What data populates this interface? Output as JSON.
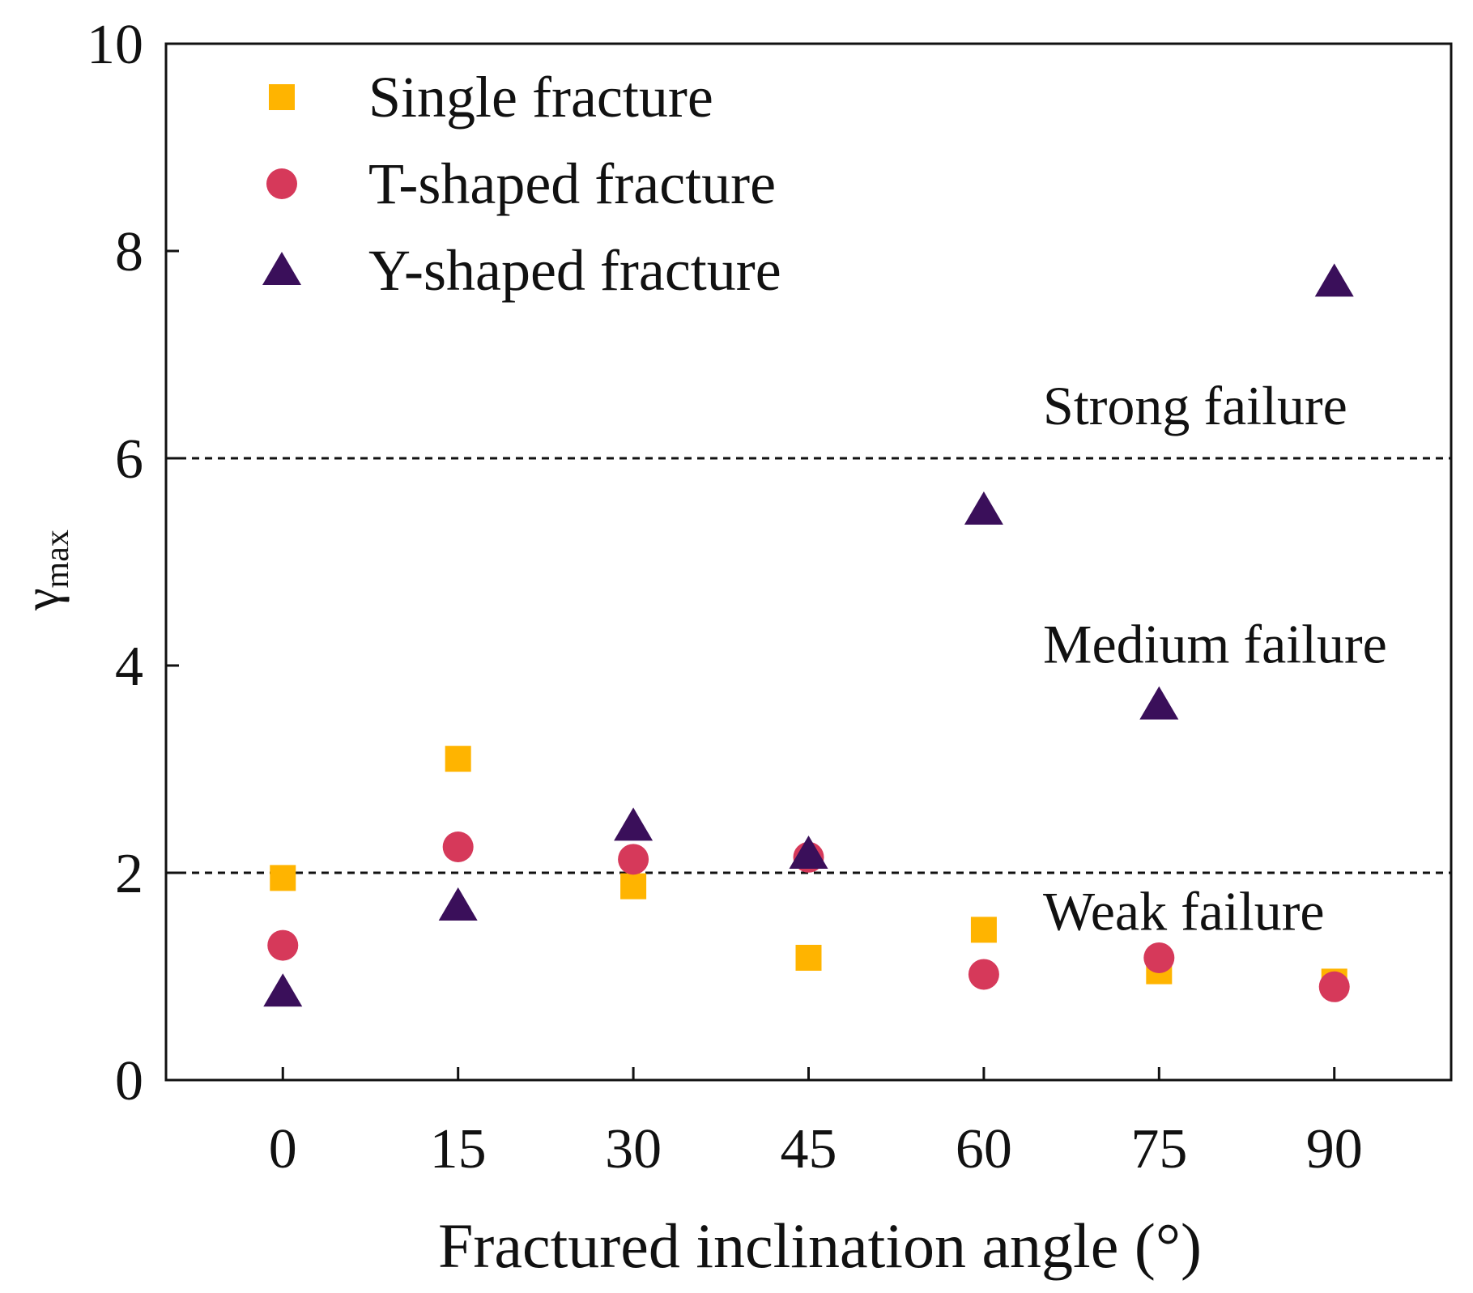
{
  "chart_data": {
    "type": "scatter",
    "xlabel": "Fractured inclination angle (°)",
    "ylabel_main": "γ",
    "ylabel_sub": "max",
    "xlim": [
      -10,
      100
    ],
    "ylim": [
      0,
      10
    ],
    "x_ticks": [
      0,
      15,
      30,
      45,
      60,
      75,
      90
    ],
    "x_tick_labels": [
      "0",
      "15",
      "30",
      "45",
      "60",
      "75",
      "90"
    ],
    "y_ticks": [
      0,
      2,
      4,
      6,
      8,
      10
    ],
    "y_tick_labels": [
      "0",
      "2",
      "4",
      "6",
      "8",
      "10"
    ],
    "grid": false,
    "legend_position": "top-left",
    "series": [
      {
        "name": "Single fracture",
        "marker": "square",
        "color": "#FFB400",
        "x": [
          0,
          15,
          30,
          45,
          60,
          75,
          90
        ],
        "y": [
          1.95,
          3.1,
          1.87,
          1.18,
          1.45,
          1.05,
          0.95
        ]
      },
      {
        "name": "T-shaped fracture",
        "marker": "circle",
        "color": "#D6395A",
        "x": [
          0,
          15,
          30,
          45,
          60,
          75,
          90
        ],
        "y": [
          1.3,
          2.25,
          2.13,
          2.15,
          1.02,
          1.18,
          0.9
        ]
      },
      {
        "name": "Y-shaped fracture",
        "marker": "triangle",
        "color": "#3A0F5A",
        "x": [
          0,
          15,
          30,
          45,
          60,
          75,
          90
        ],
        "y": [
          0.85,
          1.68,
          2.45,
          2.18,
          5.5,
          3.62,
          7.7
        ]
      }
    ],
    "reference_lines": [
      {
        "y": 6,
        "style": "dashed"
      },
      {
        "y": 2,
        "style": "dashed"
      }
    ],
    "annotations": [
      {
        "text": "Strong failure",
        "x": 75,
        "y": 6.5
      },
      {
        "text": "Medium failure",
        "x": 75,
        "y": 4.2
      },
      {
        "text": "Weak failure",
        "x": 75,
        "y": 1.62
      }
    ]
  }
}
